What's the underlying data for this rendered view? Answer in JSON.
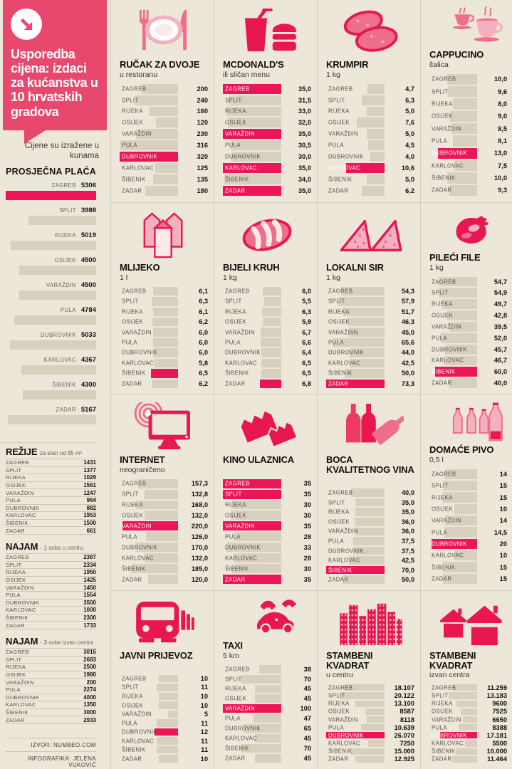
{
  "colors": {
    "background": "#ede7da",
    "accent": "#ec1557",
    "header_pink": "#e9486e",
    "bar_grey": "#d8d0be",
    "line": "#d5cbb9"
  },
  "header": {
    "title": "Usporedba cijena: izdaci za kućanstva u 10 hrvatskih gradova",
    "note": "Cijene su izražene u kunama"
  },
  "footer": {
    "source": "IZVOR: NUMBEO.COM",
    "credit": "INFOGRAFIKA: JELENA VUKOVIĆ"
  },
  "cities": [
    "ZAGREB",
    "SPLIT",
    "RIJEKA",
    "OSIJEK",
    "VARAŽDIN",
    "PULA",
    "DUBROVNIK",
    "KARLOVAC",
    "ŠIBENIK",
    "ZADAR"
  ],
  "chart_data": [
    {
      "id": "prosjecna-placa",
      "type": "bar",
      "title": "PROSJEČNA PLAĆA",
      "subtitle": "",
      "legend_position": "none",
      "grid": false,
      "max_len": 1,
      "categories": [
        "ZAGREB",
        "SPLIT",
        "RIJEKA",
        "OSIJEK",
        "VARAŽDIN",
        "PULA",
        "DUBROVNIK",
        "KARLOVAC",
        "ŠIBENIK",
        "ZADAR"
      ],
      "values": [
        5306,
        3988,
        5019,
        4500,
        4500,
        4784,
        5033,
        4367,
        4300,
        5167
      ],
      "value_labels": [
        "5306",
        "3988",
        "5019",
        "4500",
        "4500",
        "4784",
        "5033",
        "4367",
        "4300",
        "5167"
      ],
      "highlight_rule": "max"
    },
    {
      "id": "rucak-za-dvoje",
      "type": "bar",
      "title": "RUČAK ZA DVOJE",
      "subtitle": "u restoranu",
      "icon": "plate-icon",
      "icon_layout": "top",
      "max_len": 1,
      "grid": true,
      "values": [
        200,
        240,
        160,
        120,
        230,
        316,
        320,
        125,
        135,
        180
      ],
      "value_labels": [
        "200",
        "240",
        "160",
        "120",
        "230",
        "316",
        "320",
        "125",
        "135",
        "180"
      ],
      "highlight_rule": "max"
    },
    {
      "id": "mcdonalds",
      "type": "bar",
      "title": "MCDONALD'S",
      "subtitle": "ili sličan menu",
      "icon": "fastfood-icon",
      "icon_layout": "top",
      "max_len": 1,
      "grid": true,
      "values": [
        35,
        31.5,
        33,
        32,
        35,
        30.5,
        30,
        35,
        34,
        35
      ],
      "value_labels": [
        "35,0",
        "31,5",
        "33,0",
        "32,0",
        "35,0",
        "30,5",
        "30,0",
        "35,0",
        "34,0",
        "35,0"
      ],
      "highlight_rule": "max"
    },
    {
      "id": "krumpir",
      "type": "bar",
      "title": "KRUMPIR",
      "subtitle": "1 kg",
      "icon": "potato-icon",
      "icon_layout": "top",
      "max_len": 0.66,
      "grid": true,
      "values": [
        4.7,
        6.3,
        5,
        7.6,
        5,
        4.5,
        4,
        10.6,
        5,
        6.2
      ],
      "value_labels": [
        "4,7",
        "6,3",
        "5,0",
        "7,6",
        "5,0",
        "4,5",
        "4,0",
        "10,6",
        "5,0",
        "6,2"
      ],
      "highlight_rule": "max"
    },
    {
      "id": "cappucino",
      "type": "bar",
      "title": "CAPPUCINO",
      "subtitle": "šalica",
      "icon": "coffee-icon",
      "icon_layout": "right",
      "max_len": 0.82,
      "grid": true,
      "values": [
        10,
        9.6,
        8,
        9,
        8.5,
        8.1,
        13,
        7.5,
        10,
        9.3
      ],
      "value_labels": [
        "10,0",
        "9,6",
        "8,0",
        "9,0",
        "8,5",
        "8,1",
        "13,0",
        "7,5",
        "10,0",
        "9,3"
      ],
      "highlight_rule": "max"
    },
    {
      "id": "mlijeko",
      "type": "bar",
      "title": "MLIJEKO",
      "subtitle": "1 l",
      "icon": "milk-icon",
      "icon_layout": "top",
      "max_len": 0.46,
      "grid": true,
      "values": [
        6.1,
        6.3,
        6.1,
        6.2,
        6,
        6,
        6,
        5.8,
        6.5,
        6.2
      ],
      "value_labels": [
        "6,1",
        "6,3",
        "6,1",
        "6,2",
        "6,0",
        "6,0",
        "6,0",
        "5,8",
        "6,5",
        "6,2"
      ],
      "highlight_rule": "max"
    },
    {
      "id": "bijeli-kruh",
      "type": "bar",
      "title": "BIJELI KRUH",
      "subtitle": "1 kg",
      "icon": "bread-icon",
      "icon_layout": "top",
      "max_len": 0.36,
      "grid": true,
      "values": [
        6,
        5.5,
        6.3,
        5.9,
        6.7,
        6.6,
        6.4,
        6.5,
        6.5,
        6.8
      ],
      "value_labels": [
        "6,0",
        "5,5",
        "6,3",
        "5,9",
        "6,7",
        "6,6",
        "6,4",
        "6,5",
        "6,5",
        "6,8"
      ],
      "highlight_rule": "max"
    },
    {
      "id": "lokalni-sir",
      "type": "bar",
      "title": "LOKALNI SIR",
      "subtitle": "1 kg",
      "icon": "cheese-icon",
      "icon_layout": "top",
      "max_len": 1,
      "grid": true,
      "values": [
        54.3,
        57.9,
        51.7,
        46.3,
        45,
        65.6,
        44,
        42.5,
        50,
        73.3
      ],
      "value_labels": [
        "54,3",
        "57,9",
        "51,7",
        "46,3",
        "45,0",
        "65,6",
        "44,0",
        "42,5",
        "50,0",
        "73,3"
      ],
      "highlight_rule": "max"
    },
    {
      "id": "pileci-file",
      "type": "bar",
      "title": "PILEĆI FILE",
      "subtitle": "1 kg",
      "icon": "chicken-icon",
      "icon_layout": "right",
      "max_len": 0.88,
      "grid": true,
      "values": [
        54.7,
        54.9,
        49.7,
        42.8,
        39.5,
        52,
        45.7,
        46.7,
        60,
        40
      ],
      "value_labels": [
        "54,7",
        "54,9",
        "49,7",
        "42,8",
        "39,5",
        "52,0",
        "45,7",
        "46,7",
        "60,0",
        "40,0"
      ],
      "highlight_rule": "max"
    },
    {
      "id": "internet",
      "type": "bar",
      "title": "INTERNET",
      "subtitle": "neograničeno",
      "icon": "internet-icon",
      "icon_layout": "top",
      "max_len": 0.95,
      "grid": true,
      "values": [
        157.3,
        132.8,
        168,
        132,
        220,
        126,
        170,
        132,
        185,
        120
      ],
      "value_labels": [
        "157,3",
        "132,8",
        "168,0",
        "132,0",
        "220,0",
        "126,0",
        "170,0",
        "132,0",
        "185,0",
        "120,0"
      ],
      "highlight_rule": "max"
    },
    {
      "id": "kino-ulaznica",
      "type": "bar",
      "title": "KINO ULAZNICA",
      "subtitle": "",
      "icon": "cinema-ticket-icon",
      "icon_layout": "top",
      "max_len": 1,
      "grid": true,
      "values": [
        35,
        35,
        30,
        30,
        35,
        28,
        33,
        28,
        30,
        35
      ],
      "value_labels": [
        "35",
        "35",
        "30",
        "30",
        "35",
        "28",
        "33",
        "28",
        "30",
        "35"
      ],
      "highlight_rule": "max"
    },
    {
      "id": "boca-kvalitetnog-vina",
      "type": "bar",
      "title": "BOCA KVALITETNOG VINA",
      "subtitle": "",
      "icon": "wine-icon",
      "icon_layout": "top",
      "max_len": 1,
      "grid": true,
      "values": [
        40,
        35,
        35,
        36,
        36,
        37.5,
        37.5,
        42.5,
        70,
        50
      ],
      "value_labels": [
        "40,0",
        "35,0",
        "35,0",
        "36,0",
        "36,0",
        "37,5",
        "37,5",
        "42,5",
        "70,0",
        "50,0"
      ],
      "highlight_rule": "max"
    },
    {
      "id": "domace-pivo",
      "type": "bar",
      "title": "DOMAĆE PIVO",
      "subtitle": "0,5 l",
      "icon": "beer-icon",
      "icon_layout": "right",
      "max_len": 0.95,
      "grid": true,
      "values": [
        14,
        15,
        15,
        10,
        14,
        14.5,
        20,
        10,
        15,
        15
      ],
      "value_labels": [
        "14",
        "15",
        "15",
        "10",
        "14",
        "14,5",
        "20",
        "10",
        "15",
        "15"
      ],
      "highlight_rule": "max"
    },
    {
      "id": "javni-prijevoz",
      "type": "bar",
      "title": "JAVNI PRIJEVOZ",
      "subtitle": "",
      "icon": "transit-icon",
      "icon_layout": "top",
      "max_len": 0.4,
      "grid": true,
      "values": [
        10,
        11,
        10,
        10,
        5,
        11,
        12,
        11,
        11,
        10
      ],
      "value_labels": [
        "10",
        "11",
        "10",
        "10",
        "5",
        "11",
        "12",
        "11",
        "11",
        "10"
      ],
      "highlight_rule": "max"
    },
    {
      "id": "taxi",
      "type": "bar",
      "title": "TAXI",
      "subtitle": "5 km",
      "icon": "taxi-icon",
      "icon_layout": "right",
      "max_len": 1,
      "grid": true,
      "values": [
        38,
        70,
        45,
        45,
        100,
        47,
        65,
        45,
        70,
        45
      ],
      "value_labels": [
        "38",
        "70",
        "45",
        "45",
        "100",
        "47",
        "65",
        "45",
        "70",
        "45"
      ],
      "highlight_rule": "max"
    },
    {
      "id": "stambeni-kvadrat-centar",
      "type": "bar",
      "title": "STAMBENI KVADRAT",
      "subtitle": "u centru",
      "icon": "buildings-icon",
      "icon_layout": "top",
      "max_len": 1,
      "grid": true,
      "values": [
        18107,
        20122,
        13100,
        8587,
        8118,
        10639,
        26070,
        7250,
        15000,
        12925
      ],
      "value_labels": [
        "18.107",
        "20.122",
        "13.100",
        "8587",
        "8118",
        "10.639",
        "26.070",
        "7250",
        "15.000",
        "12.925"
      ],
      "highlight_rule": "max"
    },
    {
      "id": "stambeni-kvadrat-izvan",
      "type": "bar",
      "title": "STAMBENI KVADRAT",
      "subtitle": "izvan centra",
      "icon": "houses-icon",
      "icon_layout": "top",
      "max_len": 0.78,
      "grid": true,
      "values": [
        11259,
        13183,
        9600,
        7525,
        6650,
        8388,
        17181,
        5500,
        10000,
        11464
      ],
      "value_labels": [
        "11.259",
        "13.183",
        "9600",
        "7525",
        "6650",
        "8388",
        "17.181",
        "5500",
        "10.000",
        "11.464"
      ],
      "highlight_rule": "max"
    },
    {
      "id": "rezije",
      "type": "table",
      "title": "REŽIJE",
      "subtitle": "za stan od 85 m²",
      "values": [
        1431,
        1377,
        1029,
        1561,
        1247,
        964,
        882,
        1953,
        1500,
        661
      ],
      "value_labels": [
        "1431",
        "1377",
        "1029",
        "1561",
        "1247",
        "964",
        "882",
        "1953",
        "1500",
        "661"
      ]
    },
    {
      "id": "najam-1-soba",
      "type": "table",
      "title": "NAJAM",
      "subtitle": "- 1 soba u centru",
      "values": [
        2387,
        2334,
        1950,
        1425,
        1450,
        1554,
        3500,
        1000,
        2300,
        1733
      ],
      "value_labels": [
        "2387",
        "2334",
        "1950",
        "1425",
        "1450",
        "1554",
        "3500",
        "1000",
        "2300",
        "1733"
      ]
    },
    {
      "id": "najam-3-sobe",
      "type": "table",
      "title": "NAJAM",
      "subtitle": "- 3 sobe izvan centra",
      "values": [
        3015,
        2683,
        2500,
        1980,
        200,
        2274,
        4000,
        1350,
        3000,
        2933
      ],
      "value_labels": [
        "3015",
        "2683",
        "2500",
        "1980",
        "200",
        "2274",
        "4000",
        "1350",
        "3000",
        "2933"
      ]
    }
  ]
}
